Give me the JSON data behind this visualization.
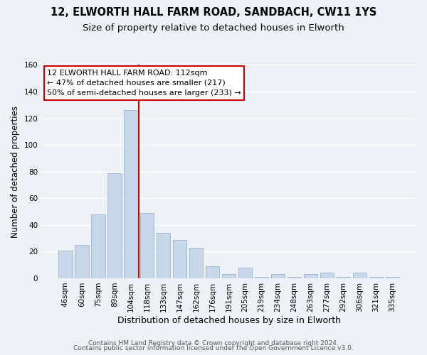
{
  "title1": "12, ELWORTH HALL FARM ROAD, SANDBACH, CW11 1YS",
  "title2": "Size of property relative to detached houses in Elworth",
  "xlabel": "Distribution of detached houses by size in Elworth",
  "ylabel": "Number of detached properties",
  "categories": [
    "46sqm",
    "60sqm",
    "75sqm",
    "89sqm",
    "104sqm",
    "118sqm",
    "133sqm",
    "147sqm",
    "162sqm",
    "176sqm",
    "191sqm",
    "205sqm",
    "219sqm",
    "234sqm",
    "248sqm",
    "263sqm",
    "277sqm",
    "292sqm",
    "306sqm",
    "321sqm",
    "335sqm"
  ],
  "values": [
    21,
    25,
    48,
    79,
    126,
    49,
    34,
    29,
    23,
    9,
    3,
    8,
    1,
    3,
    1,
    3,
    4,
    1,
    4,
    1,
    1
  ],
  "bar_color": "#c8d8ea",
  "bar_edge_color": "#9ab4cc",
  "ref_line_color": "#cc0000",
  "ref_line_x": 4.5,
  "ylim": [
    0,
    160
  ],
  "yticks": [
    0,
    20,
    40,
    60,
    80,
    100,
    120,
    140,
    160
  ],
  "annotation_title": "12 ELWORTH HALL FARM ROAD: 112sqm",
  "annotation_line1": "← 47% of detached houses are smaller (217)",
  "annotation_line2": "50% of semi-detached houses are larger (233) →",
  "annotation_box_facecolor": "#ffffff",
  "annotation_box_edgecolor": "#cc0000",
  "footer1": "Contains HM Land Registry data © Crown copyright and database right 2024.",
  "footer2": "Contains public sector information licensed under the Open Government Licence v3.0.",
  "background_color": "#eef2f7",
  "grid_color": "#ffffff",
  "title1_fontsize": 10.5,
  "title2_fontsize": 9.5,
  "xlabel_fontsize": 9,
  "ylabel_fontsize": 8.5,
  "tick_fontsize": 7.5,
  "ann_fontsize": 8,
  "footer_fontsize": 6.5
}
